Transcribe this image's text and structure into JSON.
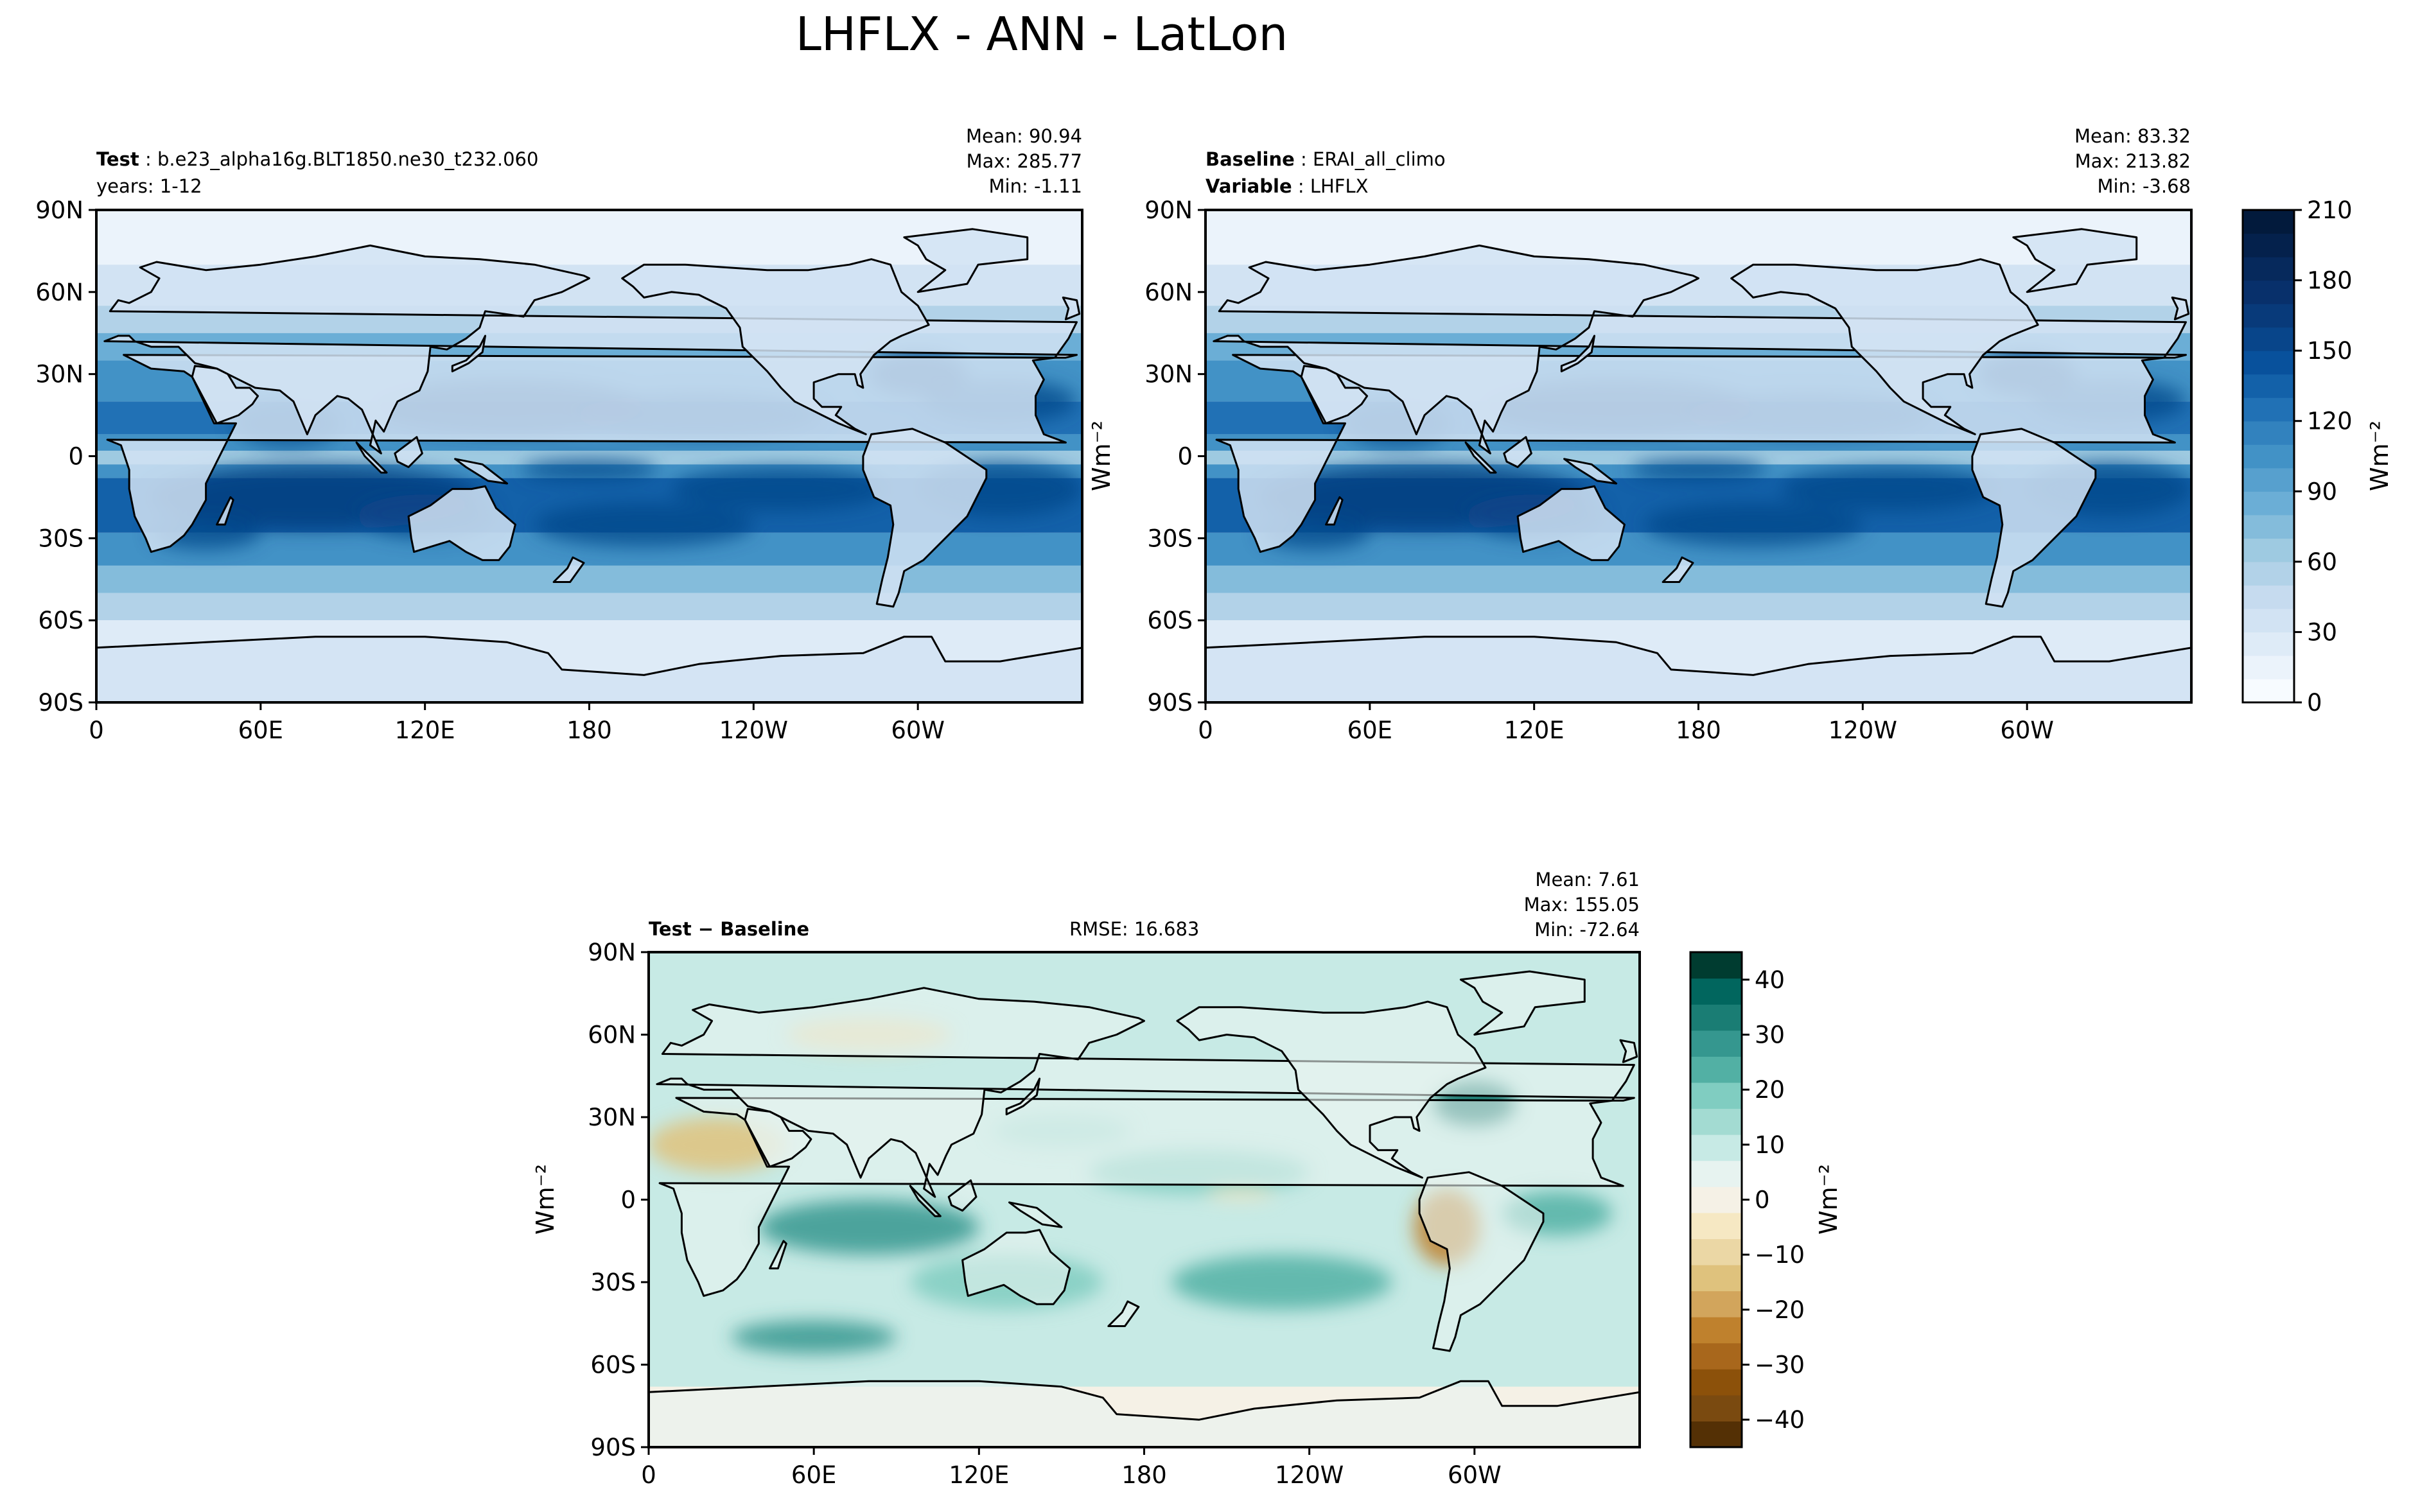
{
  "figure": {
    "title": "LHFLX - ANN - LatLon",
    "lat_ticks": [
      "90N",
      "60N",
      "30N",
      "0",
      "30S",
      "60S",
      "90S"
    ],
    "lon_ticks": [
      "0",
      "60E",
      "120E",
      "180",
      "120W",
      "60W"
    ]
  },
  "panels": {
    "test": {
      "label_bold": "Test",
      "label_value": "b.e23_alpha16g.BLT1850.ne30_t232.060",
      "line2": "years: 1-12",
      "stats": [
        "Mean: 90.94",
        "Max: 285.77",
        "Min: -1.11"
      ]
    },
    "baseline": {
      "label_bold": "Baseline",
      "label_value": "ERAI_all_climo",
      "label2_bold": "Variable",
      "label2_value": "LHFLX",
      "stats": [
        "Mean: 83.32",
        "Max: 213.82",
        "Min: -3.68"
      ],
      "ylabel": "Wm⁻²"
    },
    "diff": {
      "label": "Test − Baseline",
      "rmse": "RMSE: 16.683",
      "stats": [
        "Mean:  7.61",
        "Max: 155.05",
        "Min: -72.64"
      ],
      "ylabel": "Wm⁻²"
    }
  },
  "colorbars": {
    "main": {
      "ticks": [
        "210",
        "180",
        "150",
        "120",
        "90",
        "60",
        "30",
        "0"
      ],
      "label": "Wm⁻²",
      "levels": [
        0,
        10,
        20,
        30,
        40,
        50,
        60,
        70,
        80,
        90,
        100,
        110,
        120,
        130,
        140,
        150,
        160,
        170,
        180,
        190,
        200,
        210
      ],
      "colors": [
        "#f7fbff",
        "#ebf3fb",
        "#deebf7",
        "#d2e3f3",
        "#c6dbef",
        "#b2d2e8",
        "#9ecae1",
        "#84bcdb",
        "#6baed6",
        "#57a0ce",
        "#4292c6",
        "#3282be",
        "#2171b5",
        "#1361a9",
        "#08519c",
        "#08458a",
        "#083a7a",
        "#08306b",
        "#06295c",
        "#04214c",
        "#021a3c"
      ]
    },
    "diff": {
      "ticks": [
        "40",
        "30",
        "20",
        "10",
        "0",
        "−10",
        "−20",
        "−30",
        "−40"
      ],
      "label": "Wm⁻²",
      "levels": [
        -45,
        -40,
        -35,
        -30,
        -25,
        -20,
        -15,
        -10,
        -5,
        0,
        5,
        10,
        15,
        20,
        25,
        30,
        35,
        40,
        45
      ],
      "colors": [
        "#543005",
        "#7a4a10",
        "#8c510a",
        "#a8671c",
        "#bf812d",
        "#d2a55c",
        "#dfc27d",
        "#ebd7a5",
        "#f6e8c3",
        "#f5f1e6",
        "#e7f3f0",
        "#c7eae5",
        "#a3dbd2",
        "#80cdc1",
        "#52b0a4",
        "#35978f",
        "#1a7d74",
        "#01665e",
        "#003c30"
      ]
    }
  },
  "chart_data": [
    {
      "type": "heatmap",
      "title": "",
      "panel": "Test",
      "x_range": [
        0,
        360
      ],
      "y_range": [
        -90,
        90
      ],
      "xticks": [
        "0",
        "60E",
        "120E",
        "180",
        "120W",
        "60W"
      ],
      "yticks": [
        "90N",
        "60N",
        "30N",
        "0",
        "30S",
        "60S",
        "90S"
      ],
      "clim": [
        0,
        210
      ],
      "stats": {
        "mean": 90.94,
        "max": 285.77,
        "min": -1.11
      }
    },
    {
      "type": "heatmap",
      "title": "",
      "panel": "Baseline",
      "x_range": [
        0,
        360
      ],
      "y_range": [
        -90,
        90
      ],
      "xticks": [
        "0",
        "60E",
        "120E",
        "180",
        "120W",
        "60W"
      ],
      "yticks": [
        "90N",
        "60N",
        "30N",
        "0",
        "30S",
        "60S",
        "90S"
      ],
      "clim": [
        0,
        210
      ],
      "stats": {
        "mean": 83.32,
        "max": 213.82,
        "min": -3.68
      }
    },
    {
      "type": "heatmap",
      "title": "",
      "panel": "Test - Baseline",
      "x_range": [
        0,
        360
      ],
      "y_range": [
        -90,
        90
      ],
      "xticks": [
        "0",
        "60E",
        "120E",
        "180",
        "120W",
        "60W"
      ],
      "yticks": [
        "90N",
        "60N",
        "30N",
        "0",
        "30S",
        "60S",
        "90S"
      ],
      "clim": [
        -45,
        45
      ],
      "stats": {
        "mean": 7.61,
        "max": 155.05,
        "min": -72.64,
        "rmse": 16.683
      }
    }
  ]
}
